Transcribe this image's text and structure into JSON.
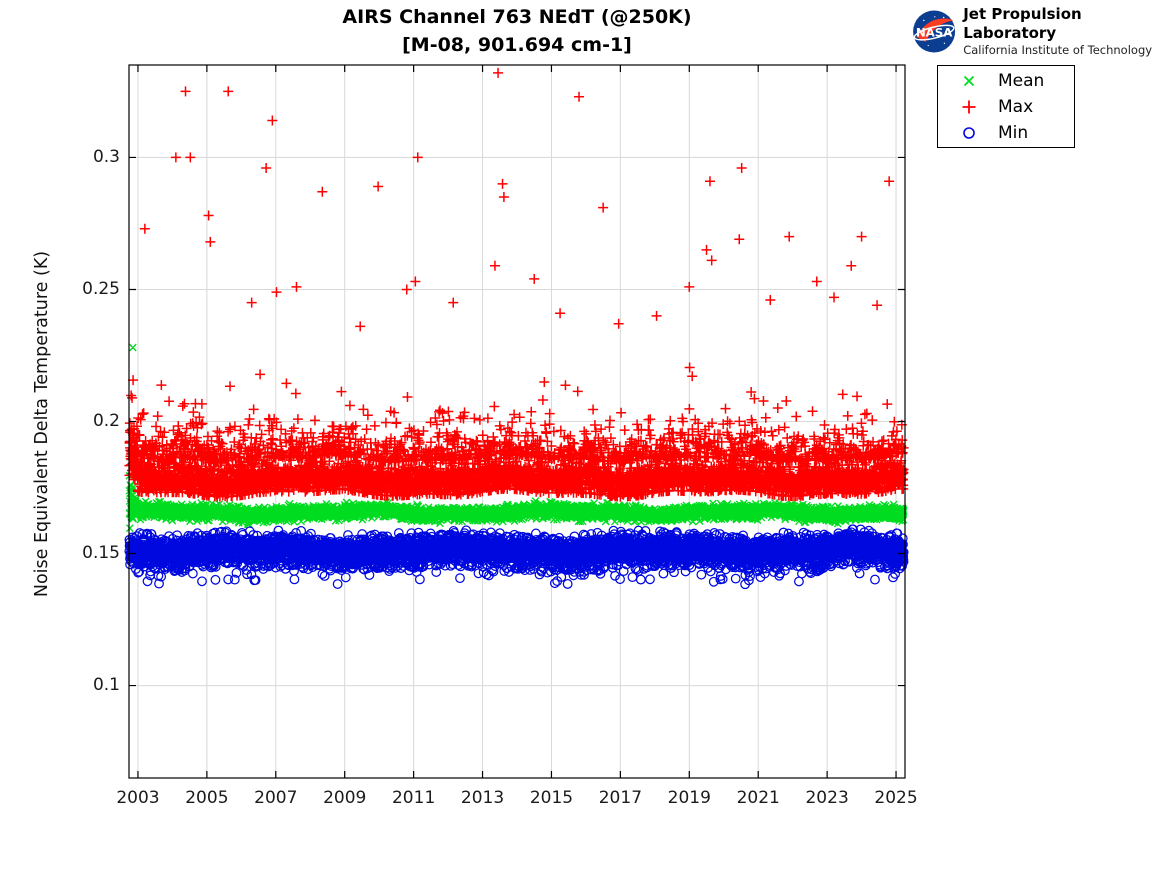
{
  "header": {
    "logo": {
      "org": "NASA",
      "name": "Jet Propulsion Laboratory",
      "sub": "California Institute of Technology",
      "meatball_blue": "#0b3d91",
      "swoosh_red": "#fc3d21"
    }
  },
  "chart_data": {
    "type": "scatter",
    "title": "AIRS Channel 763 NEdT (@250K)",
    "subtitle": "[M-08, 901.694 cm-1]",
    "xlabel": "",
    "ylabel": "Noise Equivalent Delta Temperature (K)",
    "xlim": [
      2002.74,
      2025.26
    ],
    "ylim": [
      0.065,
      0.335
    ],
    "xticks": [
      2003,
      2005,
      2007,
      2009,
      2011,
      2013,
      2015,
      2017,
      2019,
      2021,
      2023,
      2025
    ],
    "yticks": [
      0.1,
      0.15,
      0.2,
      0.25,
      0.3
    ],
    "ytick_labels": [
      "0.1",
      "0.15",
      "0.2",
      "0.25",
      "0.3"
    ],
    "grid": true,
    "legend_position": "outside-top-right",
    "x_start": 2002.75,
    "x_end": 2025.22,
    "n_points": 6000,
    "seed": 7,
    "colors": {
      "grid": "#d8d8d8",
      "axis": "#000000",
      "tick_label": "#1b1b1b"
    },
    "series": [
      {
        "name": "Mean",
        "marker": "x",
        "color": "#00dd20",
        "band_center": 0.1655,
        "band_sigma": 0.0012,
        "band_halfwidth": 0.0035,
        "wiggle_amp": 0.0007,
        "wiggle_phase": 0.8,
        "startup_spread": 0.016,
        "outliers": [
          [
            2002.85,
            0.228
          ]
        ]
      },
      {
        "name": "Max",
        "marker": "+",
        "color": "#ff0000",
        "band_center": 0.178,
        "band_sigma": 0.0031,
        "band_min": 0.173,
        "band_max": 0.1875,
        "tail_prob": 0.26,
        "tail_base": 0.1862,
        "tail_scale": 0.005,
        "wiggle_amp": 0.001,
        "wiggle_phase": 2.1,
        "startup_spread": 0.016,
        "outliers": [
          [
            2003.2,
            0.273
          ],
          [
            2004.1,
            0.3
          ],
          [
            2004.38,
            0.325
          ],
          [
            2004.52,
            0.3
          ],
          [
            2005.05,
            0.278
          ],
          [
            2005.1,
            0.268
          ],
          [
            2005.62,
            0.325
          ],
          [
            2006.3,
            0.245
          ],
          [
            2006.72,
            0.296
          ],
          [
            2006.9,
            0.314
          ],
          [
            2007.02,
            0.249
          ],
          [
            2007.6,
            0.251
          ],
          [
            2008.35,
            0.287
          ],
          [
            2009.45,
            0.236
          ],
          [
            2009.97,
            0.289
          ],
          [
            2010.8,
            0.25
          ],
          [
            2011.05,
            0.253
          ],
          [
            2011.12,
            0.3
          ],
          [
            2012.15,
            0.245
          ],
          [
            2013.36,
            0.259
          ],
          [
            2013.45,
            0.332
          ],
          [
            2013.58,
            0.29
          ],
          [
            2013.62,
            0.285
          ],
          [
            2014.5,
            0.254
          ],
          [
            2015.25,
            0.241
          ],
          [
            2015.8,
            0.323
          ],
          [
            2016.5,
            0.281
          ],
          [
            2016.95,
            0.237
          ],
          [
            2018.05,
            0.24
          ],
          [
            2019.0,
            0.251
          ],
          [
            2019.5,
            0.265
          ],
          [
            2019.6,
            0.291
          ],
          [
            2019.65,
            0.261
          ],
          [
            2020.45,
            0.269
          ],
          [
            2020.52,
            0.296
          ],
          [
            2021.35,
            0.246
          ],
          [
            2021.9,
            0.27
          ],
          [
            2022.7,
            0.253
          ],
          [
            2023.2,
            0.247
          ],
          [
            2023.7,
            0.259
          ],
          [
            2024.0,
            0.27
          ],
          [
            2024.45,
            0.244
          ],
          [
            2024.8,
            0.291
          ]
        ]
      },
      {
        "name": "Min",
        "marker": "o",
        "color": "#0008e0",
        "band_center": 0.1513,
        "band_sigma": 0.0026,
        "band_min": 0.1448,
        "band_max": 0.158,
        "dip_prob": 0.05,
        "dip_base": 0.146,
        "dip_scale": 0.002,
        "dip_floor": 0.1395,
        "wiggle_amp": 0.0008,
        "wiggle_phase": 4.0,
        "startup_spread": 0.0,
        "outliers": []
      }
    ]
  }
}
